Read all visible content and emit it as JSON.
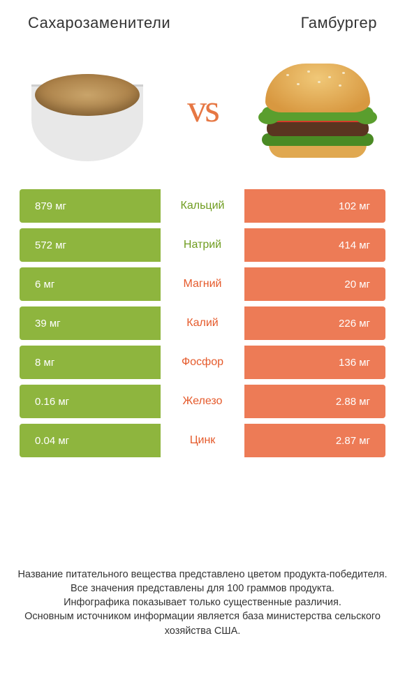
{
  "colors": {
    "left": "#8eb53e",
    "right": "#ed7b56",
    "label_left": "#6f9c1f",
    "label_right": "#e55a2b"
  },
  "header": {
    "left": "Сахарозаменители",
    "right": "Гамбургер"
  },
  "vs": "vs",
  "rows": [
    {
      "label": "Кальций",
      "left": "879 мг",
      "right": "102 мг",
      "winner": "left"
    },
    {
      "label": "Натрий",
      "left": "572 мг",
      "right": "414 мг",
      "winner": "left"
    },
    {
      "label": "Магний",
      "left": "6 мг",
      "right": "20 мг",
      "winner": "right"
    },
    {
      "label": "Калий",
      "left": "39 мг",
      "right": "226 мг",
      "winner": "right"
    },
    {
      "label": "Фосфор",
      "left": "8 мг",
      "right": "136 мг",
      "winner": "right"
    },
    {
      "label": "Железо",
      "left": "0.16 мг",
      "right": "2.88 мг",
      "winner": "right"
    },
    {
      "label": "Цинк",
      "left": "0.04 мг",
      "right": "2.87 мг",
      "winner": "right"
    }
  ],
  "footer": {
    "line1": "Название питательного вещества представлено цветом продукта-победителя.",
    "line2": "Все значения представлены для 100 граммов продукта.",
    "line3": "Инфографика показывает только существенные различия.",
    "line4": "Основным источником информации является база министерства сельского хозяйства США."
  }
}
